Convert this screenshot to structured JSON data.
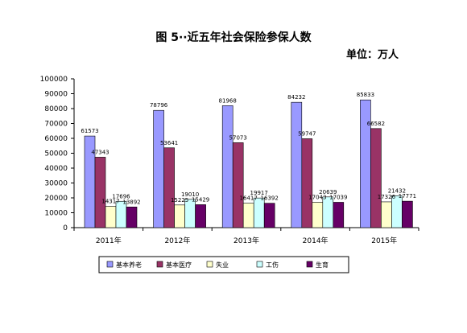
{
  "chart_data": {
    "type": "bar",
    "title": "图 5··近五年社会保险参保人数",
    "unit_label": "单位：万人",
    "categories": [
      "2011年",
      "2012年",
      "2013年",
      "2014年",
      "2015年"
    ],
    "series": [
      {
        "name": "基本养老",
        "color": "#9999ff",
        "values": [
          61573,
          78796,
          81968,
          84232,
          85833
        ]
      },
      {
        "name": "基本医疗",
        "color": "#993366",
        "values": [
          47343,
          53641,
          57073,
          59747,
          66582
        ]
      },
      {
        "name": "失业",
        "color": "#ffffcc",
        "values": [
          14317,
          15225,
          16417,
          17043,
          17326
        ]
      },
      {
        "name": "工伤",
        "color": "#ccffff",
        "values": [
          17696,
          19010,
          19917,
          20639,
          21432
        ]
      },
      {
        "name": "生育",
        "color": "#660066",
        "values": [
          13892,
          15429,
          16392,
          17039,
          17771
        ]
      }
    ],
    "yticks": [
      "0",
      "10000",
      "20000",
      "30000",
      "40000",
      "50000",
      "60000",
      "70000",
      "80000",
      "90000",
      "100000"
    ],
    "ylim": [
      0,
      100000
    ],
    "legend": "bottom"
  }
}
